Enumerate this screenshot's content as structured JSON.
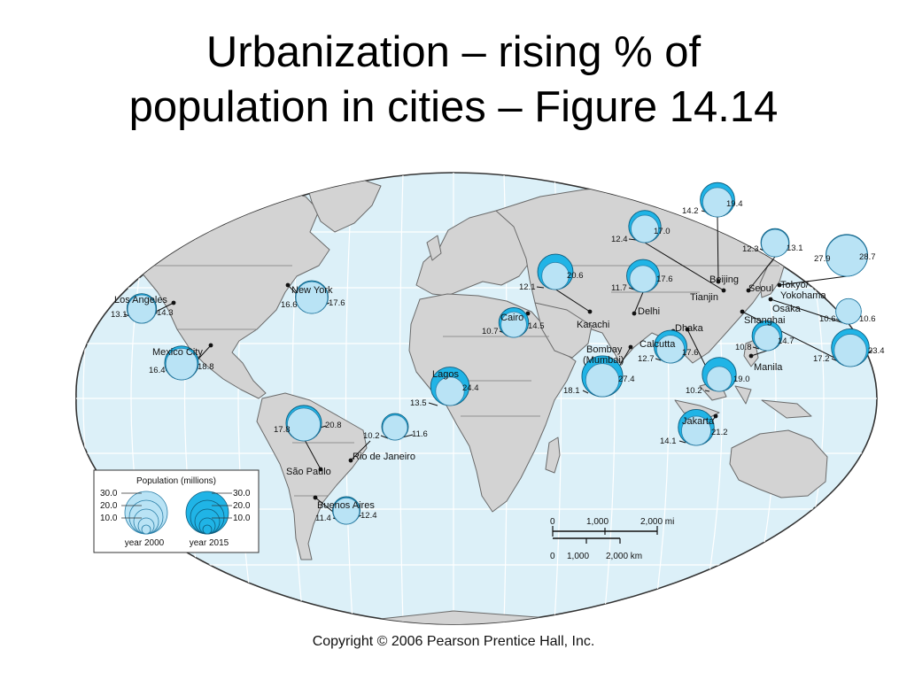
{
  "title": {
    "line1": "Urbanization – rising % of",
    "line2": "population in cities – Figure 14.14"
  },
  "copyright": "Copyright © 2006 Pearson Prentice Hall, Inc.",
  "colors": {
    "ocean": "#dcf0f8",
    "land": "#d3d3d3",
    "circle_2000": "#b9e3f5",
    "circle_2015": "#20b4e6"
  },
  "legend": {
    "title": "Population (millions)",
    "scale_values": [
      "30.0",
      "20.0",
      "10.0"
    ],
    "label_2000": "year 2000",
    "label_2015": "year 2015"
  },
  "scale_bar": {
    "mi_labels": [
      "0",
      "1,000",
      "2,000 mi"
    ],
    "km_labels": [
      "0",
      "1,000",
      "2,000 km"
    ]
  },
  "cities": [
    {
      "name": "Los Angeles",
      "pop_2000": "13.1",
      "pop_2015": "14.3"
    },
    {
      "name": "New York",
      "pop_2000": "16.6",
      "pop_2015": "17.6"
    },
    {
      "name": "Mexico City",
      "pop_2000": "16.4",
      "pop_2015": "18.8"
    },
    {
      "name": "São Paulo",
      "pop_2000": "17.8",
      "pop_2015": "20.8"
    },
    {
      "name": "Rio de Janeiro",
      "pop_2000": "10.2",
      "pop_2015": "11.6"
    },
    {
      "name": "Buenos Aires",
      "pop_2000": "11.4",
      "pop_2015": "12.4"
    },
    {
      "name": "Lagos",
      "pop_2000": "13.5",
      "pop_2015": "24.4"
    },
    {
      "name": "Cairo",
      "pop_2000": "10.7",
      "pop_2015": "14.5"
    },
    {
      "name": "Karachi",
      "pop_2000": "12.1",
      "pop_2015": "20.6"
    },
    {
      "name": "Delhi",
      "pop_2000": "11.7",
      "pop_2015": "17.6"
    },
    {
      "name": "Bombay (Mumbai)",
      "pop_2000": "18.1",
      "pop_2015": "27.4"
    },
    {
      "name": "Calcutta",
      "pop_2000": "12.7",
      "pop_2015": "17.6"
    },
    {
      "name": "Dhaka",
      "pop_2000": "10.2",
      "pop_2015": "19.0"
    },
    {
      "name": "Jakarta",
      "pop_2000": "14.1",
      "pop_2015": "21.2"
    },
    {
      "name": "Manila",
      "pop_2000": "10.8",
      "pop_2015": "14.7"
    },
    {
      "name": "Shanghai",
      "pop_2000": "17.2",
      "pop_2015": "23.4"
    },
    {
      "name": "Beijing",
      "pop_2000": "14.2",
      "pop_2015": "19.4"
    },
    {
      "name": "Tianjin",
      "pop_2000": "12.4",
      "pop_2015": "17.0"
    },
    {
      "name": "Seoul",
      "pop_2000": "12.3",
      "pop_2015": "13.1"
    },
    {
      "name": "Tokyo/ Yokohama",
      "pop_2000": "27.9",
      "pop_2015": "28.7"
    },
    {
      "name": "Osaka",
      "pop_2000": "10.6",
      "pop_2015": "10.6"
    }
  ]
}
